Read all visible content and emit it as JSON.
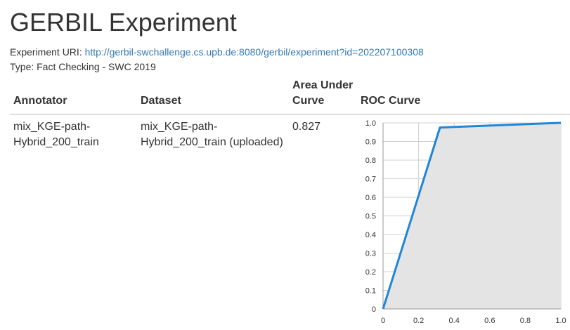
{
  "page": {
    "title": "GERBIL Experiment",
    "uri_label": "Experiment URI: ",
    "uri": "http://gerbil-swchallenge.cs.upb.de:8080/gerbil/experiment?id=202207100308",
    "type_line": "Type: Fact Checking - SWC 2019"
  },
  "table": {
    "headers": {
      "annotator": "Annotator",
      "dataset": "Dataset",
      "auc_line1": "Area Under",
      "auc_line2": "Curve",
      "roc": "ROC Curve"
    },
    "rows": [
      {
        "annotator_line1": "mix_KGE-path-",
        "annotator_line2": "Hybrid_200_train",
        "dataset_line1": "mix_KGE-path-",
        "dataset_line2": "Hybrid_200_train (uploaded)",
        "auc": "0.827"
      }
    ]
  },
  "chart_data": {
    "type": "area",
    "x": [
      0,
      0.32,
      0.85,
      1.0
    ],
    "y": [
      0,
      0.975,
      0.995,
      1.0
    ],
    "xlim": [
      0,
      1
    ],
    "ylim": [
      0,
      1
    ],
    "xticks": [
      "0",
      "0.2",
      "0.4",
      "0.6",
      "0.8",
      "1.0"
    ],
    "yticks": [
      "0",
      "0.1",
      "0.2",
      "0.3",
      "0.4",
      "0.5",
      "0.6",
      "0.7",
      "0.8",
      "0.9",
      "1.0"
    ],
    "grid": true,
    "line_color": "#1f86d8",
    "fill_color": "#e4e4e4",
    "grid_color": "#d0d0d0"
  }
}
